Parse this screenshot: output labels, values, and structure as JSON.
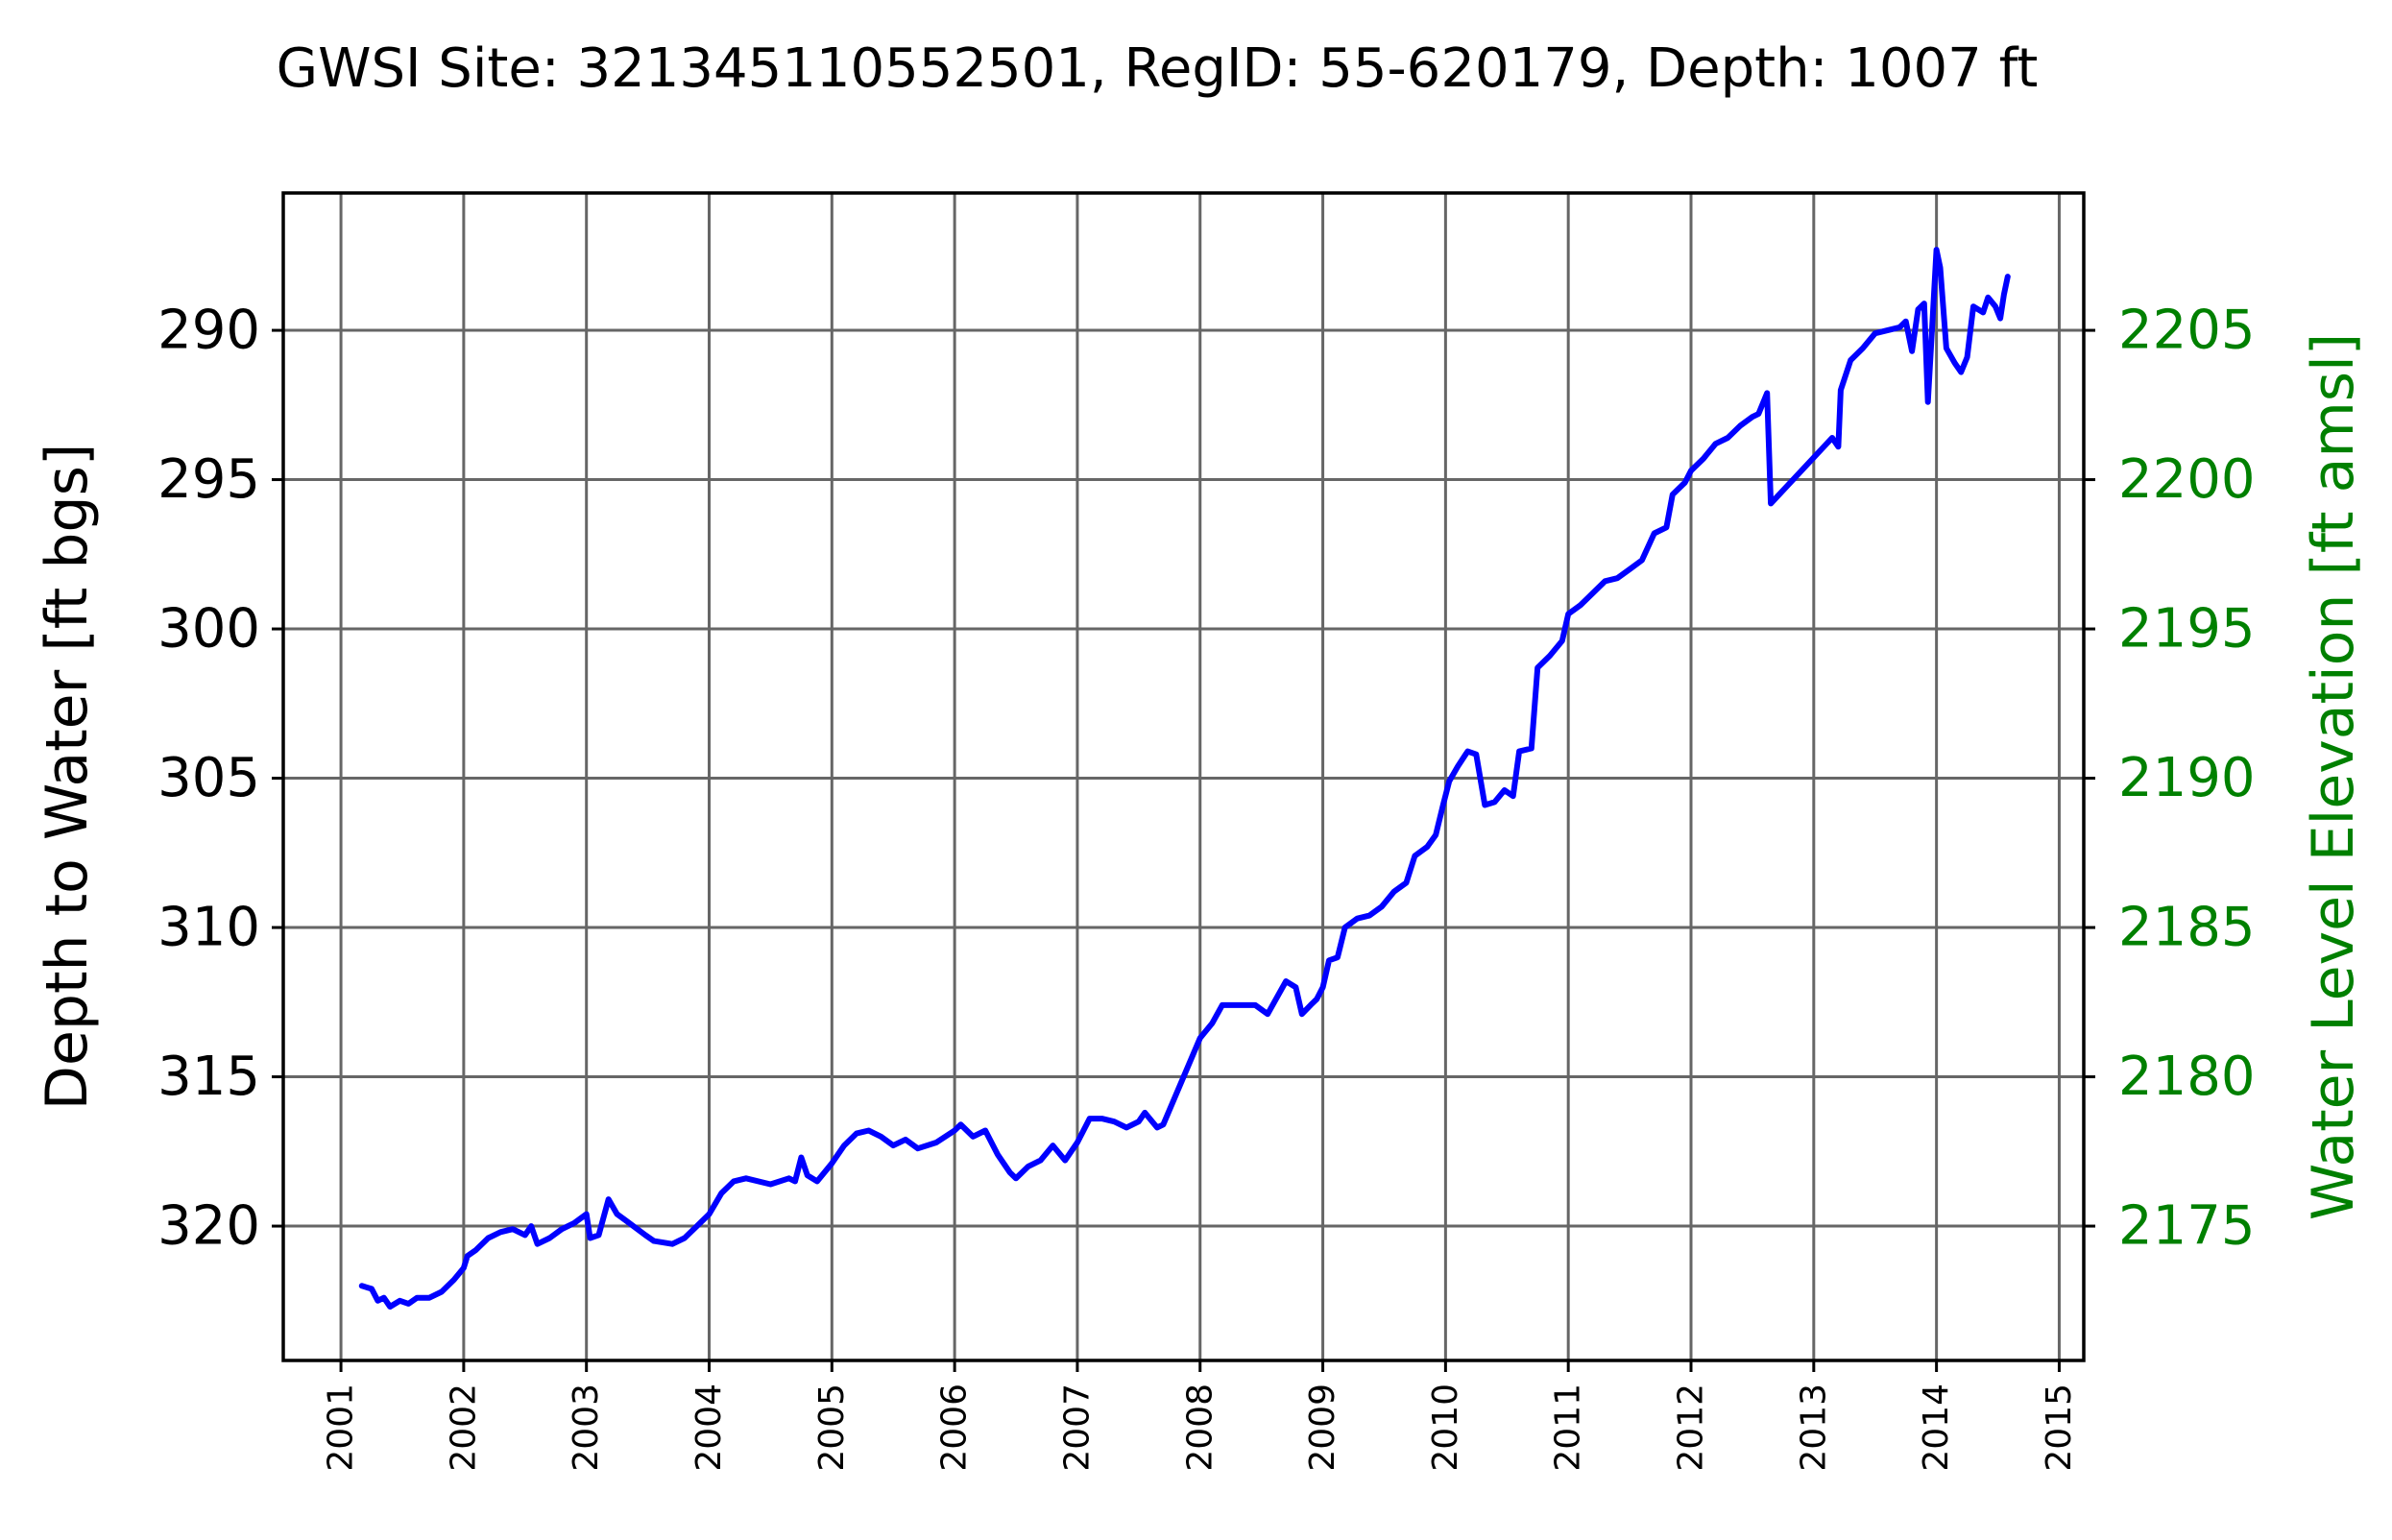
{
  "chart_data": {
    "type": "line",
    "title": "GWSI Site: 321345110552501, RegID: 55-620179, Depth: 1007 ft",
    "ylabel_left": "Depth to Water [ft bgs]",
    "ylabel_right": "Water Level Elevation [ft amsl]",
    "xlabel": "",
    "x_tick_labels": [
      "2001",
      "2002",
      "2003",
      "2004",
      "2005",
      "2006",
      "2007",
      "2008",
      "2009",
      "2010",
      "2011",
      "2012",
      "2013",
      "2014",
      "2015"
    ],
    "x_tick_years": [
      2001,
      2002,
      2003,
      2004,
      2005,
      2006,
      2007,
      2008,
      2009,
      2010,
      2011,
      2012,
      2013,
      2014,
      2015
    ],
    "xlim": [
      2000.53,
      2015.2
    ],
    "y_left_inverted": true,
    "y_left_tick_labels": [
      "290",
      "295",
      "300",
      "305",
      "310",
      "315",
      "320"
    ],
    "y_left_tick_values": [
      290,
      295,
      300,
      305,
      310,
      315,
      320
    ],
    "ylim_left": [
      285.4,
      324.5
    ],
    "y_right_tick_labels": [
      "2205",
      "2200",
      "2195",
      "2190",
      "2185",
      "2180",
      "2175"
    ],
    "y_right_tick_values": [
      2205,
      2200,
      2195,
      2190,
      2185,
      2180,
      2175
    ],
    "ylim_right": [
      2209.6,
      2170.5
    ],
    "right_axis_color": "#008000",
    "line_color": "#0000ff",
    "grid": true,
    "legend": "none",
    "series": [
      {
        "points": [
          [
            2001.17,
            322.0
          ],
          [
            2001.25,
            322.1
          ],
          [
            2001.3,
            322.5
          ],
          [
            2001.35,
            322.4
          ],
          [
            2001.4,
            322.7
          ],
          [
            2001.48,
            322.5
          ],
          [
            2001.55,
            322.6
          ],
          [
            2001.62,
            322.4
          ],
          [
            2001.72,
            322.4
          ],
          [
            2001.82,
            322.2
          ],
          [
            2001.92,
            321.8
          ],
          [
            2002.0,
            321.4
          ],
          [
            2002.03,
            321.0
          ],
          [
            2002.1,
            320.8
          ],
          [
            2002.2,
            320.4
          ],
          [
            2002.3,
            320.2
          ],
          [
            2002.4,
            320.1
          ],
          [
            2002.5,
            320.3
          ],
          [
            2002.55,
            320.0
          ],
          [
            2002.6,
            320.6
          ],
          [
            2002.7,
            320.4
          ],
          [
            2002.8,
            320.1
          ],
          [
            2002.9,
            319.9
          ],
          [
            2003.0,
            319.6
          ],
          [
            2003.03,
            320.4
          ],
          [
            2003.1,
            320.3
          ],
          [
            2003.18,
            319.1
          ],
          [
            2003.25,
            319.6
          ],
          [
            2003.35,
            319.9
          ],
          [
            2003.48,
            320.3
          ],
          [
            2003.55,
            320.5
          ],
          [
            2003.7,
            320.6
          ],
          [
            2003.8,
            320.4
          ],
          [
            2003.9,
            320.0
          ],
          [
            2004.0,
            319.6
          ],
          [
            2004.1,
            318.9
          ],
          [
            2004.2,
            318.5
          ],
          [
            2004.3,
            318.4
          ],
          [
            2004.5,
            318.6
          ],
          [
            2004.65,
            318.4
          ],
          [
            2004.7,
            318.5
          ],
          [
            2004.75,
            317.7
          ],
          [
            2004.8,
            318.3
          ],
          [
            2004.88,
            318.5
          ],
          [
            2005.0,
            317.9
          ],
          [
            2005.1,
            317.3
          ],
          [
            2005.2,
            316.9
          ],
          [
            2005.3,
            316.8
          ],
          [
            2005.4,
            317.0
          ],
          [
            2005.5,
            317.3
          ],
          [
            2005.6,
            317.1
          ],
          [
            2005.7,
            317.4
          ],
          [
            2005.85,
            317.2
          ],
          [
            2006.0,
            316.8
          ],
          [
            2006.05,
            316.6
          ],
          [
            2006.15,
            317.0
          ],
          [
            2006.25,
            316.8
          ],
          [
            2006.35,
            317.6
          ],
          [
            2006.45,
            318.2
          ],
          [
            2006.5,
            318.4
          ],
          [
            2006.6,
            318.0
          ],
          [
            2006.7,
            317.8
          ],
          [
            2006.8,
            317.3
          ],
          [
            2006.9,
            317.8
          ],
          [
            2007.0,
            317.2
          ],
          [
            2007.1,
            316.4
          ],
          [
            2007.2,
            316.4
          ],
          [
            2007.3,
            316.5
          ],
          [
            2007.4,
            316.7
          ],
          [
            2007.5,
            316.5
          ],
          [
            2007.55,
            316.2
          ],
          [
            2007.65,
            316.7
          ],
          [
            2007.7,
            316.6
          ],
          [
            2008.0,
            313.7
          ],
          [
            2008.1,
            313.2
          ],
          [
            2008.18,
            312.6
          ],
          [
            2008.3,
            312.6
          ],
          [
            2008.45,
            312.6
          ],
          [
            2008.55,
            312.9
          ],
          [
            2008.7,
            311.8
          ],
          [
            2008.78,
            312.0
          ],
          [
            2008.83,
            312.9
          ],
          [
            2008.9,
            312.6
          ],
          [
            2008.95,
            312.4
          ],
          [
            2009.0,
            312.0
          ],
          [
            2009.05,
            311.1
          ],
          [
            2009.12,
            311.0
          ],
          [
            2009.18,
            310.0
          ],
          [
            2009.28,
            309.7
          ],
          [
            2009.38,
            309.6
          ],
          [
            2009.48,
            309.3
          ],
          [
            2009.58,
            308.8
          ],
          [
            2009.68,
            308.5
          ],
          [
            2009.75,
            307.6
          ],
          [
            2009.85,
            307.3
          ],
          [
            2009.92,
            306.9
          ],
          [
            2009.98,
            305.9
          ],
          [
            2010.03,
            305.1
          ],
          [
            2010.1,
            304.6
          ],
          [
            2010.18,
            304.1
          ],
          [
            2010.25,
            304.2
          ],
          [
            2010.32,
            305.9
          ],
          [
            2010.4,
            305.8
          ],
          [
            2010.48,
            305.4
          ],
          [
            2010.55,
            305.6
          ],
          [
            2010.6,
            304.1
          ],
          [
            2010.7,
            304.0
          ],
          [
            2010.75,
            301.3
          ],
          [
            2010.85,
            300.9
          ],
          [
            2010.95,
            300.4
          ],
          [
            2011.0,
            299.5
          ],
          [
            2011.1,
            299.2
          ],
          [
            2011.2,
            298.8
          ],
          [
            2011.3,
            298.4
          ],
          [
            2011.4,
            298.3
          ],
          [
            2011.5,
            298.0
          ],
          [
            2011.6,
            297.7
          ],
          [
            2011.7,
            296.8
          ],
          [
            2011.8,
            296.6
          ],
          [
            2011.85,
            295.5
          ],
          [
            2011.95,
            295.1
          ],
          [
            2012.0,
            294.7
          ],
          [
            2012.1,
            294.3
          ],
          [
            2012.2,
            293.8
          ],
          [
            2012.3,
            293.6
          ],
          [
            2012.4,
            293.2
          ],
          [
            2012.5,
            292.9
          ],
          [
            2012.55,
            292.8
          ],
          [
            2012.62,
            292.1
          ],
          [
            2012.65,
            295.8
          ],
          [
            2013.15,
            293.6
          ],
          [
            2013.2,
            293.9
          ],
          [
            2013.22,
            292.0
          ],
          [
            2013.3,
            291.0
          ],
          [
            2013.4,
            290.6
          ],
          [
            2013.5,
            290.1
          ],
          [
            2013.7,
            289.9
          ],
          [
            2013.75,
            289.7
          ],
          [
            2013.8,
            290.7
          ],
          [
            2013.85,
            289.3
          ],
          [
            2013.9,
            289.1
          ],
          [
            2013.93,
            292.4
          ],
          [
            2013.97,
            289.5
          ],
          [
            2014.0,
            287.3
          ],
          [
            2014.03,
            287.9
          ],
          [
            2014.08,
            290.6
          ],
          [
            2014.15,
            291.1
          ],
          [
            2014.2,
            291.4
          ],
          [
            2014.25,
            290.9
          ],
          [
            2014.3,
            289.2
          ],
          [
            2014.38,
            289.4
          ],
          [
            2014.42,
            288.9
          ],
          [
            2014.48,
            289.2
          ],
          [
            2014.52,
            289.6
          ],
          [
            2014.55,
            288.8
          ],
          [
            2014.58,
            288.2
          ]
        ]
      }
    ]
  }
}
